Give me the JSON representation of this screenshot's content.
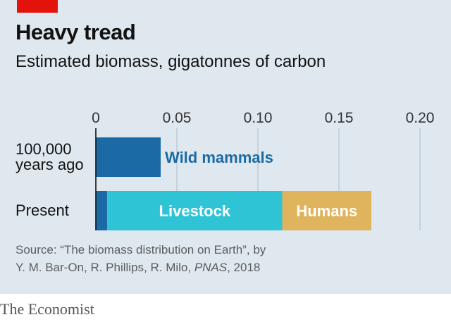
{
  "header": {
    "title": "Heavy tread",
    "subtitle": "Estimated biomass, gigatonnes of carbon"
  },
  "source": {
    "line1": "Source: “The biomass distribution on Earth”, by",
    "line2_prefix": "Y. M. Bar-On, R. Phillips, R. Milo, ",
    "line2_journal": "PNAS",
    "line2_suffix": ", 2018"
  },
  "brand": "The Economist",
  "colors": {
    "accent_red": "#e3120b",
    "wild_mammals": "#1b6aa5",
    "livestock": "#2ec4d6",
    "humans": "#e0b45c"
  },
  "chart_data": {
    "type": "bar",
    "orientation": "horizontal",
    "stacked": true,
    "title": "Heavy tread",
    "subtitle": "Estimated biomass, gigatonnes of carbon",
    "xlim": [
      0,
      0.2
    ],
    "x_ticks": [
      0,
      0.05,
      0.1,
      0.15,
      0.2
    ],
    "x_tick_labels": [
      "0",
      "0.05",
      "0.10",
      "0.15",
      "0.20"
    ],
    "grid": true,
    "categories": [
      "100,000\nyears ago",
      "Present"
    ],
    "series": [
      {
        "name": "Wild mammals",
        "values": [
          0.04,
          0.007
        ],
        "color": "#1b6aa5",
        "label_placement": "outside-right"
      },
      {
        "name": "Livestock",
        "values": [
          0,
          0.108
        ],
        "color": "#2ec4d6",
        "label_placement": "inside"
      },
      {
        "name": "Humans",
        "values": [
          0,
          0.055
        ],
        "color": "#e0b45c",
        "label_placement": "inside"
      }
    ]
  }
}
